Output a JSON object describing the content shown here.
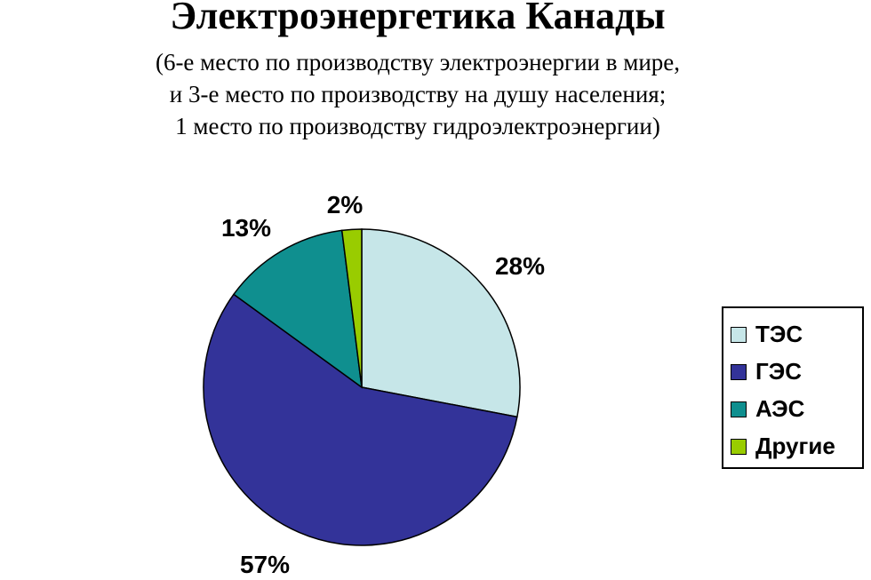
{
  "header": {
    "title": "Электроэнергетика Канады",
    "subtitle_lines": [
      "(6-е место по производству электроэнергии в мире,",
      "и 3-е место по производству на душу населения;",
      "1 место по производству гидроэлектроэнергии)"
    ]
  },
  "chart_data": {
    "type": "pie",
    "title": "Электроэнергетика Канады",
    "labels": [
      "ТЭС",
      "ГЭС",
      "АЭС",
      "Другие"
    ],
    "values": [
      28,
      57,
      13,
      2
    ],
    "value_labels": [
      "28%",
      "57%",
      "13%",
      "2%"
    ],
    "colors": [
      "#c6e6e8",
      "#333399",
      "#0f8f8f",
      "#99cc00"
    ],
    "start_angle_deg": 0,
    "direction": "clockwise",
    "legend_position": "right"
  }
}
